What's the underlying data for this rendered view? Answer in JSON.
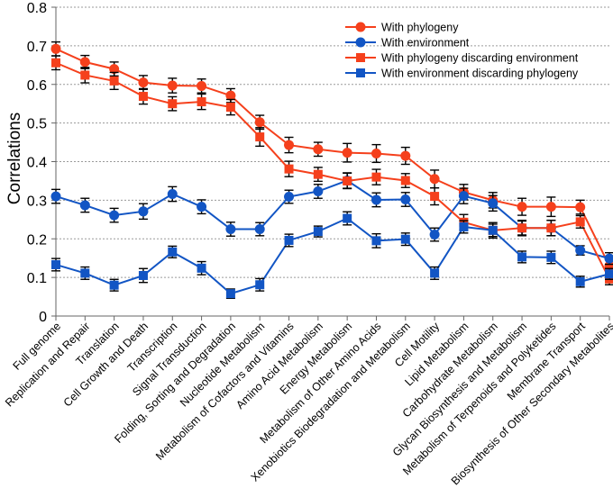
{
  "chart_data": {
    "type": "line",
    "title": "",
    "xlabel": "",
    "ylabel": "Correlations",
    "ylim": [
      0,
      0.8
    ],
    "yticks": [
      "0",
      "0.1",
      "0.2",
      "0.3",
      "0.4",
      "0.5",
      "0.6",
      "0.7",
      "0.8"
    ],
    "grid": "horizontal dotted",
    "legend_position": "top-right",
    "categories": [
      "Full genome",
      "Replication and Repair",
      "Translation",
      "Cell Growth and Death",
      "Transcription",
      "Signal Transduction",
      "Folding, Sorting and Degradation",
      "Nucleotide Metabolism",
      "Metabolism of Cofactors and Vitamins",
      "Amino Acid Metabolism",
      "Energy Metabolism",
      "Metabolism of Other Amino Acids",
      "Xenobiotics Biodegradation and Metabolism",
      "Cell Motility",
      "Lipid Metabolism",
      "Carbohydrate Metabolism",
      "Glycan Biosynthesis and Metabolism",
      "Metabolism of Terpenoids and Polyketides",
      "Membrane Transport",
      "Biosynthesis of Other Secondary Metabolites"
    ],
    "series": [
      {
        "name": "With phylogeny",
        "color": "#f5401c",
        "marker": "circle",
        "values": [
          0.692,
          0.658,
          0.64,
          0.605,
          0.597,
          0.596,
          0.571,
          0.502,
          0.443,
          0.432,
          0.423,
          0.421,
          0.415,
          0.355,
          0.321,
          0.3,
          0.283,
          0.283,
          0.282,
          0.13
        ],
        "errors": [
          0.018,
          0.017,
          0.018,
          0.018,
          0.019,
          0.018,
          0.018,
          0.018,
          0.02,
          0.018,
          0.024,
          0.023,
          0.022,
          0.023,
          0.02,
          0.02,
          0.022,
          0.025,
          0.018,
          0.02
        ]
      },
      {
        "name": "With environment",
        "color": "#1255c4",
        "marker": "circle",
        "values": [
          0.31,
          0.287,
          0.261,
          0.271,
          0.316,
          0.283,
          0.225,
          0.225,
          0.309,
          0.323,
          0.351,
          0.301,
          0.302,
          0.211,
          0.311,
          0.292,
          0.228,
          0.228,
          0.17,
          0.149
        ],
        "errors": [
          0.018,
          0.018,
          0.018,
          0.02,
          0.019,
          0.018,
          0.018,
          0.017,
          0.017,
          0.018,
          0.02,
          0.018,
          0.018,
          0.017,
          0.02,
          0.02,
          0.02,
          0.02,
          0.012,
          0.015
        ]
      },
      {
        "name": "With phylogeny discarding environment",
        "color": "#f5401c",
        "marker": "square",
        "values": [
          0.656,
          0.624,
          0.609,
          0.569,
          0.55,
          0.555,
          0.541,
          0.464,
          0.381,
          0.367,
          0.35,
          0.36,
          0.351,
          0.31,
          0.243,
          0.222,
          0.228,
          0.228,
          0.244,
          0.096
        ],
        "errors": [
          0.018,
          0.02,
          0.022,
          0.02,
          0.018,
          0.02,
          0.02,
          0.024,
          0.02,
          0.018,
          0.02,
          0.02,
          0.018,
          0.022,
          0.02,
          0.02,
          0.018,
          0.02,
          0.016,
          0.015
        ]
      },
      {
        "name": "With environment discarding phylogeny",
        "color": "#1255c4",
        "marker": "square",
        "values": [
          0.133,
          0.111,
          0.08,
          0.105,
          0.166,
          0.124,
          0.058,
          0.081,
          0.196,
          0.219,
          0.253,
          0.195,
          0.199,
          0.111,
          0.231,
          0.222,
          0.153,
          0.152,
          0.089,
          0.109
        ],
        "errors": [
          0.016,
          0.016,
          0.015,
          0.018,
          0.015,
          0.017,
          0.012,
          0.016,
          0.016,
          0.014,
          0.017,
          0.018,
          0.016,
          0.016,
          0.016,
          0.016,
          0.015,
          0.016,
          0.014,
          0.014
        ]
      }
    ]
  }
}
